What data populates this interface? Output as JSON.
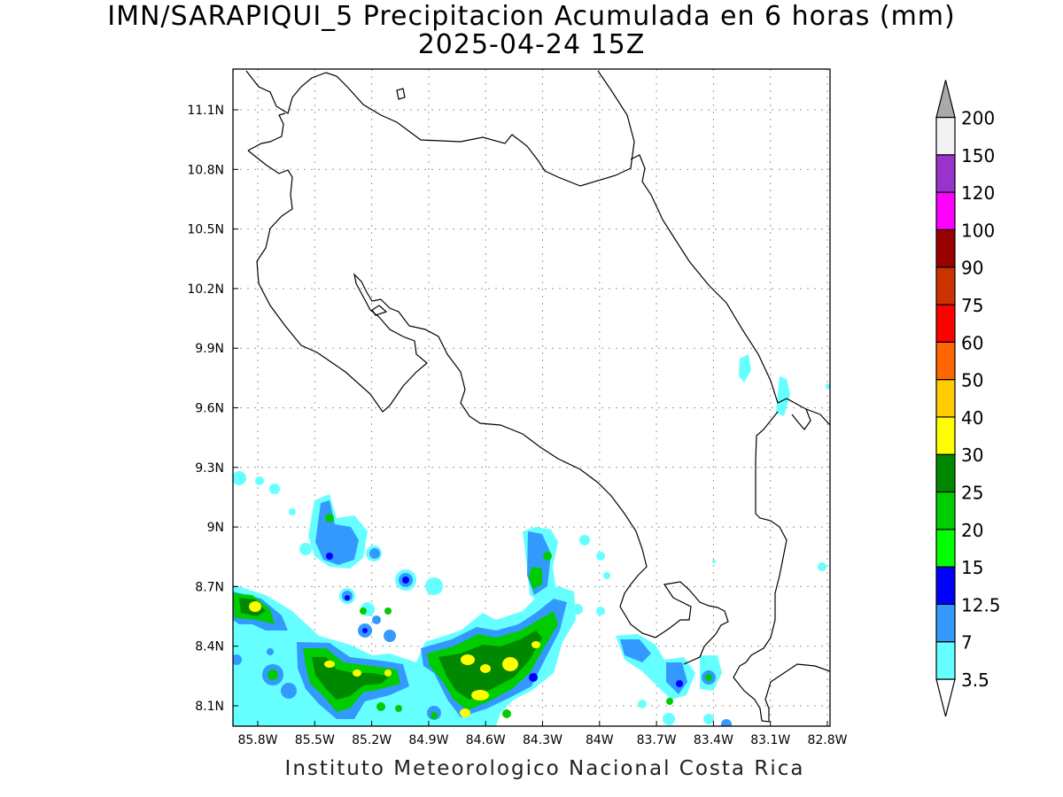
{
  "title_line1": "IMN/SARAPIQUI_5 Precipitacion Acumulada en 6 horas (mm)",
  "title_line2": "2025-04-24 15Z",
  "credit": "Instituto Meteorologico Nacional Costa Rica",
  "map": {
    "lon_labels": [
      "85.8W",
      "85.5W",
      "85.2W",
      "84.9W",
      "84.6W",
      "84.3W",
      "84W",
      "83.7W",
      "83.4W",
      "83.1W",
      "82.8W"
    ],
    "lat_labels": [
      "11.1N",
      "10.8N",
      "10.5N",
      "10.2N",
      "9.9N",
      "9.6N",
      "9.3N",
      "9N",
      "8.7N",
      "8.4N",
      "8.1N"
    ],
    "grid": true
  },
  "legend": {
    "labels": [
      "3.5",
      "7",
      "12.5",
      "15",
      "20",
      "25",
      "30",
      "40",
      "50",
      "60",
      "75",
      "90",
      "100",
      "120",
      "150",
      "200"
    ],
    "colors": [
      "#ffffff",
      "#66ffff",
      "#3399ff",
      "#0000ff",
      "#00ff00",
      "#00cc00",
      "#008800",
      "#ffff00",
      "#ffcc00",
      "#ff6600",
      "#ff0000",
      "#cc3300",
      "#990000",
      "#ff00ff",
      "#9933cc",
      "#f2f2f2",
      "#aaaaaa"
    ]
  }
}
